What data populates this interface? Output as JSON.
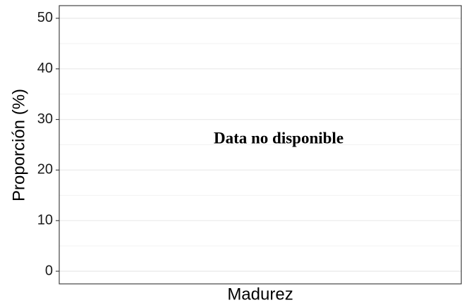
{
  "chart_data": {
    "type": "bar",
    "title": null,
    "x_label": "Madurez",
    "y_label": "Proporción (%)",
    "annotation": "Data no disponible",
    "categories": [],
    "values": [],
    "ylim": [
      -2.5,
      52.5
    ],
    "yticks": [
      0,
      10,
      20,
      30,
      40,
      50
    ],
    "yminor": [
      5,
      15,
      25,
      35,
      45
    ],
    "grid": true
  }
}
